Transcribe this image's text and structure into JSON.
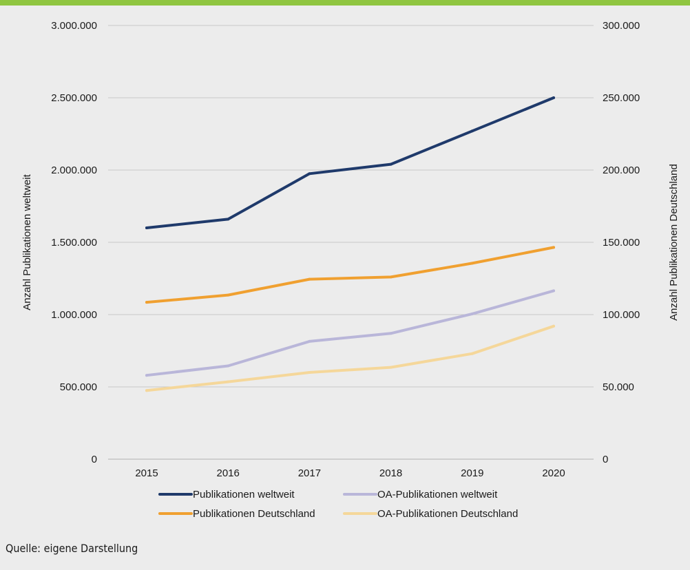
{
  "colors": {
    "top_bar": "#8fc540",
    "background": "#ececec",
    "grid": "#c8c8c8",
    "publikationen_weltweit": "#1f3a6b",
    "publikationen_deutschland": "#f0a030",
    "oa_weltweit": "#b9b6d9",
    "oa_deutschland": "#f5d79a"
  },
  "chart_data": {
    "type": "line",
    "x": [
      "2015",
      "2016",
      "2017",
      "2018",
      "2019",
      "2020"
    ],
    "ylabel": "Anzahl Publikationen weltweit",
    "y2label": "Anzahl Publikationen Deutschland",
    "ylim": [
      0,
      3000000
    ],
    "y2lim": [
      0,
      300000
    ],
    "yticks": [
      "0",
      "500.000",
      "1.000.000",
      "1.500.000",
      "2.000.000",
      "2.500.000",
      "3.000.000"
    ],
    "y2ticks": [
      "0",
      "50.000",
      "100.000",
      "150.000",
      "200.000",
      "250.000",
      "300.000"
    ],
    "grid": true,
    "legend_position": "bottom",
    "series": [
      {
        "name": "Publikationen weltweit",
        "axis": "left",
        "color": "#1f3a6b",
        "values": [
          1600000,
          1660000,
          1975000,
          2040000,
          2270000,
          2500000
        ]
      },
      {
        "name": "OA-Publikationen weltweit",
        "axis": "left",
        "color": "#b9b6d9",
        "values": [
          580000,
          645000,
          815000,
          870000,
          1005000,
          1165000
        ]
      },
      {
        "name": "Publikationen Deutschland",
        "axis": "right",
        "color": "#f0a030",
        "values": [
          108500,
          113500,
          124500,
          126000,
          135500,
          146500
        ]
      },
      {
        "name": "OA-Publikationen Deutschland",
        "axis": "right",
        "color": "#f5d79a",
        "values": [
          47500,
          53500,
          60000,
          63500,
          73000,
          92000
        ]
      }
    ]
  },
  "source": "Quelle: eigene Darstellung"
}
